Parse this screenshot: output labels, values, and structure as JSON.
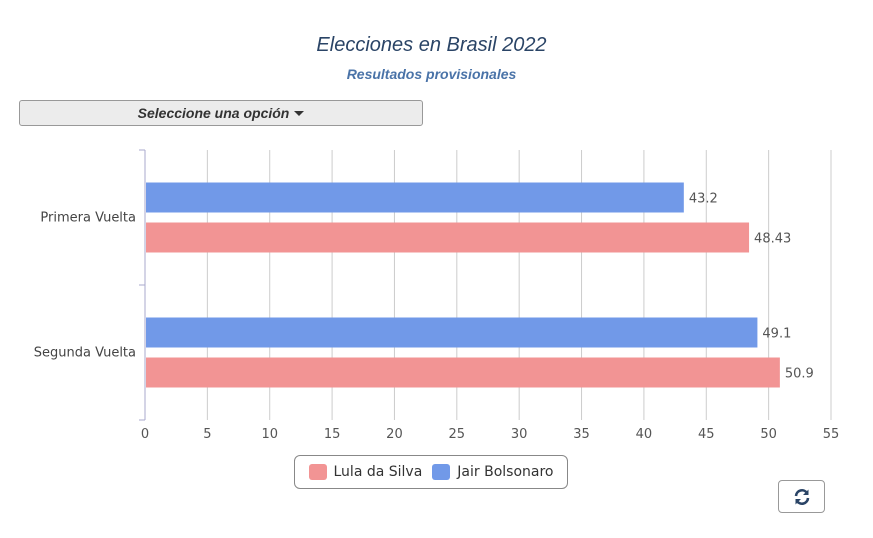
{
  "header": {
    "title": "Elecciones en Brasil 2022",
    "subtitle": "Resultados provisionales"
  },
  "dropdown": {
    "label": "Seleccione una opción"
  },
  "chart_data": {
    "type": "bar",
    "orientation": "horizontal",
    "title": "Elecciones en Brasil 2022",
    "subtitle": "Resultados provisionales",
    "categories": [
      "Primera Vuelta",
      "Segunda Vuelta"
    ],
    "series": [
      {
        "name": "Jair Bolsonaro",
        "color": "#7199e8",
        "values": [
          43.2,
          49.1
        ]
      },
      {
        "name": "Lula da Silva",
        "color": "#f29494",
        "values": [
          48.43,
          50.9
        ]
      }
    ],
    "legend_order": [
      "Lula da Silva",
      "Jair Bolsonaro"
    ],
    "xlim": [
      0,
      55
    ],
    "xticks": [
      0,
      5,
      10,
      15,
      20,
      25,
      30,
      35,
      40,
      45,
      50,
      55
    ],
    "grid": true,
    "legend": "bottom"
  }
}
